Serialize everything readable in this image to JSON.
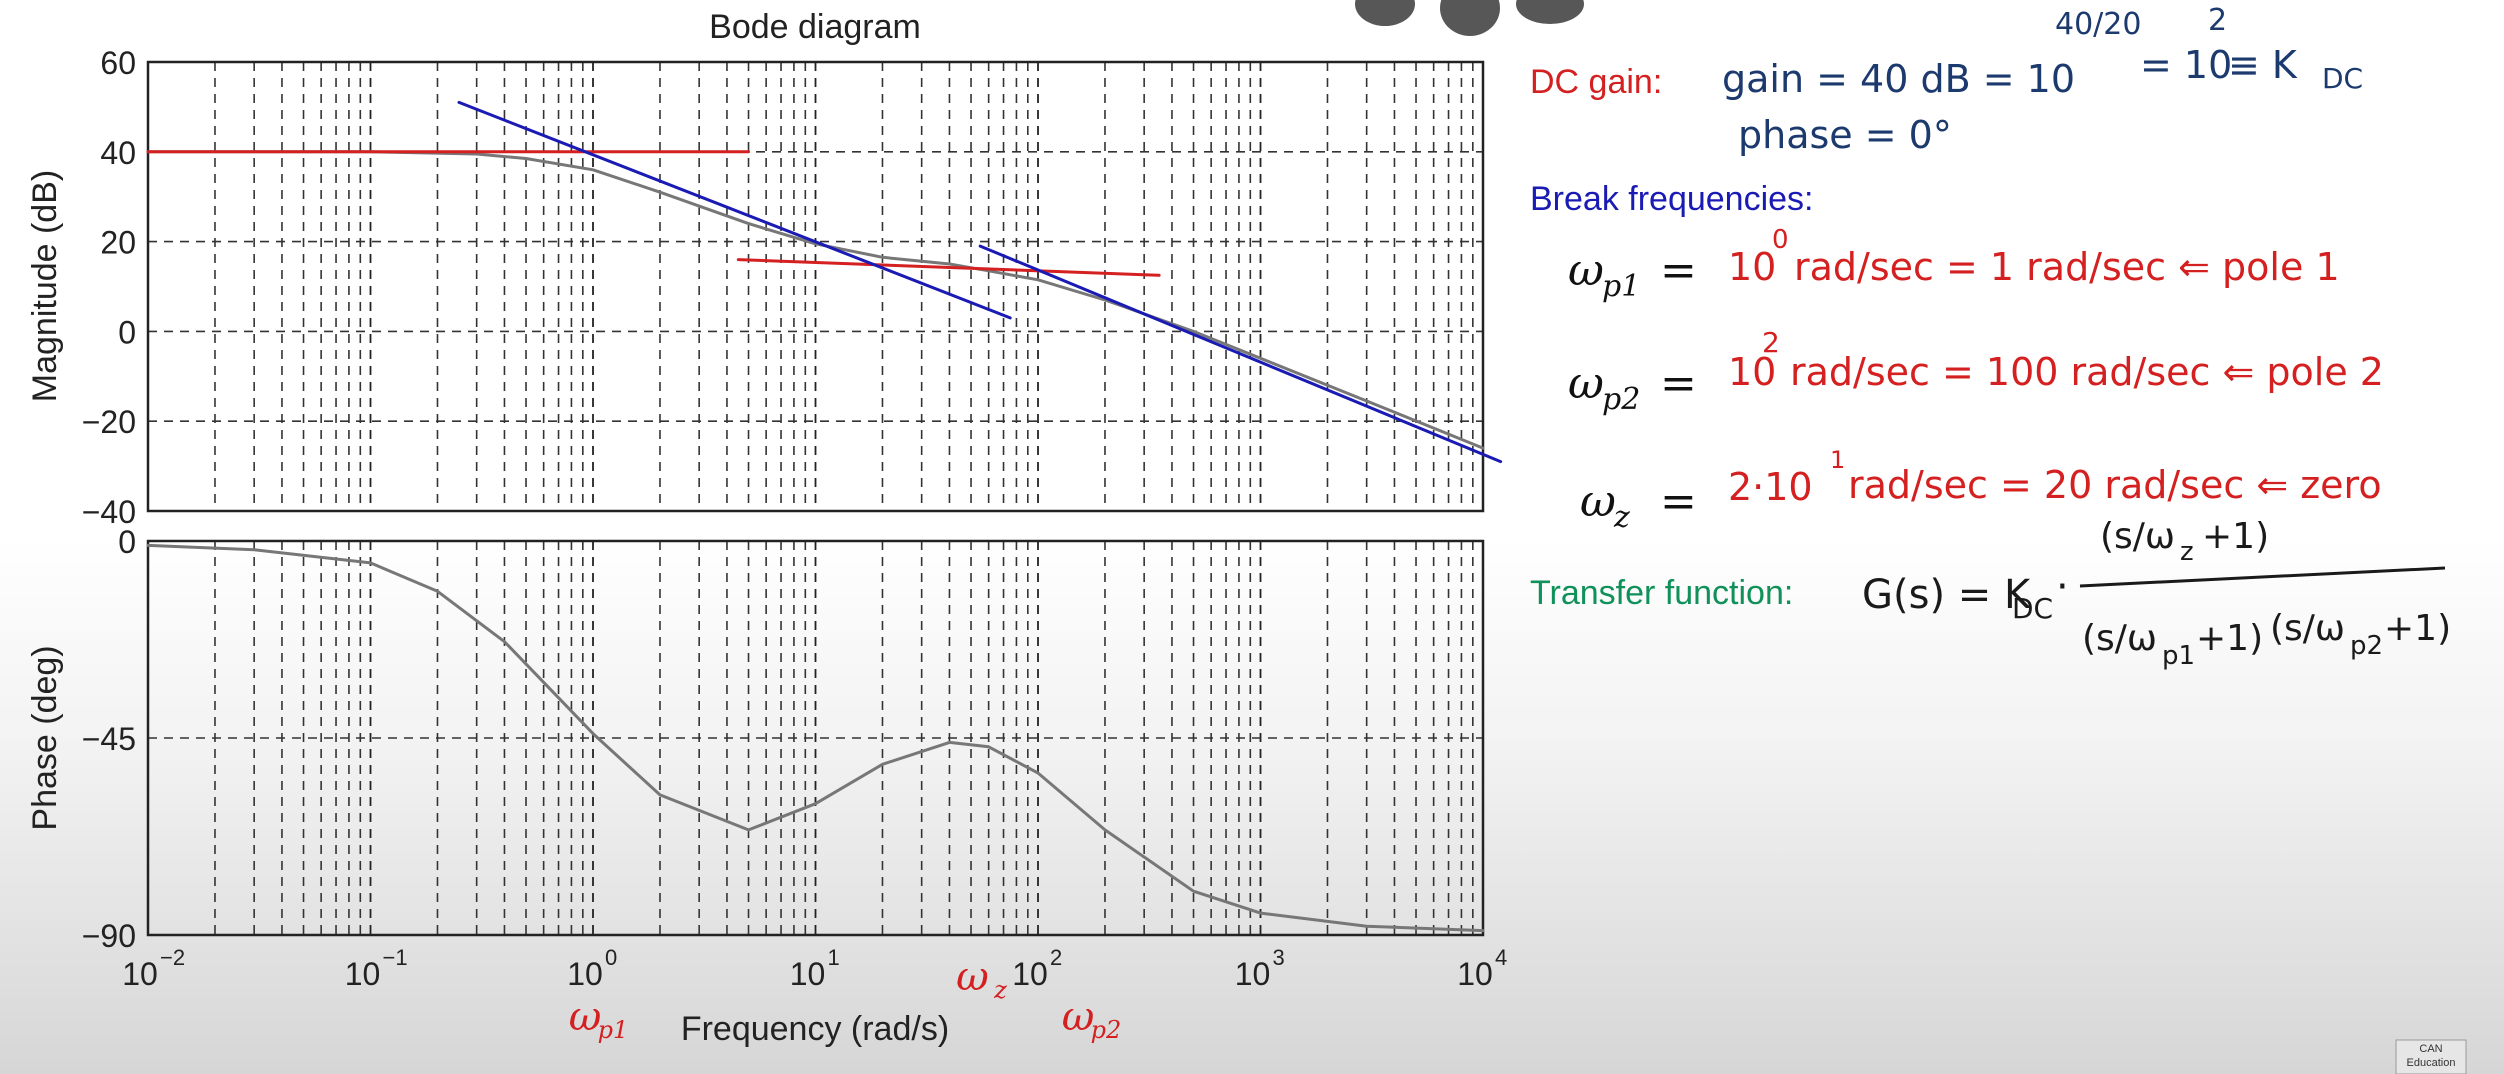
{
  "chart_data": {
    "type": "line",
    "title": "Bode diagram",
    "xlabel": "Frequency (rad/s)",
    "x_scale": "log",
    "x_ticks": [
      0.01,
      0.1,
      1,
      10,
      100,
      1000,
      10000
    ],
    "x_tick_labels": [
      {
        "base": "10",
        "exp": "−2"
      },
      {
        "base": "10",
        "exp": "−1"
      },
      {
        "base": "10",
        "exp": "0"
      },
      {
        "base": "10",
        "exp": "1"
      },
      {
        "base": "10",
        "exp": "2"
      },
      {
        "base": "10",
        "exp": "3"
      },
      {
        "base": "10",
        "exp": "4"
      }
    ],
    "xlim": [
      0.01,
      10000
    ],
    "grid": true,
    "magnitude": {
      "ylabel": "Magnitude (dB)",
      "ylim": [
        -40,
        60
      ],
      "y_ticks": [
        60,
        40,
        20,
        0,
        -20,
        -40
      ],
      "y_tick_labels": [
        "60",
        "40",
        "20",
        "0",
        "−20",
        "−40"
      ],
      "series": [
        {
          "color": "#777777",
          "x": [
            0.01,
            0.1,
            0.3,
            0.5,
            1,
            2,
            5,
            10,
            20,
            40,
            60,
            100,
            200,
            500,
            1000,
            3000,
            10000
          ],
          "y": [
            40,
            40,
            39.5,
            38.5,
            36,
            31,
            24,
            19.5,
            16.5,
            15,
            13.5,
            11.5,
            7,
            0,
            -6,
            -15.5,
            -26
          ]
        }
      ],
      "asymptotes": [
        {
          "color": "#d42020",
          "x": [
            0.01,
            5
          ],
          "y": [
            40,
            40
          ]
        },
        {
          "color": "#d42020",
          "x": [
            4.5,
            350
          ],
          "y": [
            16,
            12.5
          ]
        },
        {
          "color": "#1a1ab4",
          "x": [
            0.25,
            75
          ],
          "y": [
            51,
            3
          ]
        },
        {
          "color": "#1a1ab4",
          "x": [
            55,
            12000
          ],
          "y": [
            19,
            -29
          ]
        }
      ]
    },
    "phase": {
      "ylabel": "Phase (deg)",
      "ylim": [
        -90,
        0
      ],
      "y_ticks": [
        0,
        -45,
        -90
      ],
      "y_tick_labels": [
        "0",
        "−45",
        "−90"
      ],
      "series": [
        {
          "color": "#777777",
          "x": [
            0.01,
            0.03,
            0.1,
            0.2,
            0.4,
            1,
            2,
            5,
            10,
            20,
            40,
            60,
            100,
            200,
            500,
            1000,
            3000,
            10000
          ],
          "y": [
            -1,
            -2,
            -5,
            -11.5,
            -23,
            -44,
            -58,
            -66,
            -60,
            -51,
            -46,
            -47,
            -53,
            -66,
            -80,
            -85,
            -88,
            -89
          ]
        }
      ]
    },
    "freq_markers": [
      {
        "label_main": "ω",
        "label_sub": "p1",
        "x": 1,
        "color": "#d42020"
      },
      {
        "label_main": "ω",
        "label_sub": "z",
        "x": 20,
        "color": "#d42020"
      },
      {
        "label_main": "ω",
        "label_sub": "p2",
        "x": 100,
        "color": "#d42020"
      }
    ]
  },
  "notes": {
    "dc_gain_title": "DC gain:",
    "dc_gain_line1_a": "gain = 40 dB = 10",
    "dc_gain_line1_exp": "40/20",
    "dc_gain_line1_b": "= 10",
    "dc_gain_line1_exp2": "2",
    "dc_gain_line1_c": "≡ K",
    "dc_gain_line1_sub": "DC",
    "dc_gain_line2": "phase = 0°",
    "break_title": "Break frequencies:",
    "wp1_main": "ω",
    "wp1_sub": "p1",
    "wp1_eq": "=",
    "wp1_value_a": "10",
    "wp1_value_exp": "0",
    "wp1_value_b": "rad/sec = 1 rad/sec ⇐ pole 1",
    "wp2_main": "ω",
    "wp2_sub": "p2",
    "wp2_eq": "=",
    "wp2_value_a": "10",
    "wp2_value_exp": "2",
    "wp2_value_b": "rad/sec = 100 rad/sec ⇐ pole 2",
    "wz_main": "ω",
    "wz_sub": "z",
    "wz_eq": "=",
    "wz_value_a": "2·10",
    "wz_value_exp": "1",
    "wz_value_b": "rad/sec = 20 rad/sec ⇐ zero",
    "tf_title": "Transfer function:",
    "tf_lhs": "G(s) = K",
    "tf_lhs_sub": "DC",
    "tf_dot": "·",
    "tf_num": "(s/ω",
    "tf_num_sub": "z",
    "tf_num_tail": " +1)",
    "tf_den1": "(s/ω",
    "tf_den1_sub": "p1",
    "tf_den1_tail": " +1)",
    "tf_den2": "(s/ω",
    "tf_den2_sub": "p2",
    "tf_den2_tail": " +1)"
  },
  "colors": {
    "red": "#d42020",
    "blue": "#1a1ab4",
    "navy": "#1c3a6e",
    "green": "#10915a",
    "curve": "#777777"
  },
  "logo": {
    "line1": "CAN",
    "line2": "Education"
  }
}
